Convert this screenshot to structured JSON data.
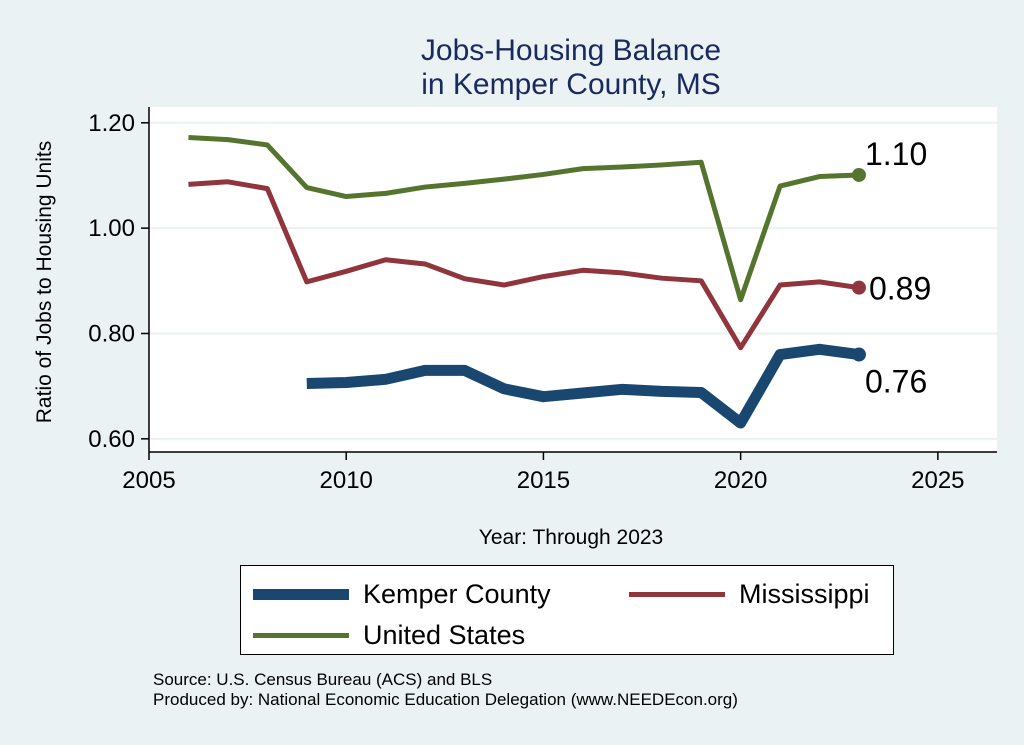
{
  "chart_data": {
    "type": "line",
    "title": [
      "Jobs-Housing Balance",
      "in Kemper County, MS"
    ],
    "xlabel": "Year: Through 2023",
    "ylabel": "Ratio of Jobs to Housing Units",
    "xlim": [
      2005,
      2026.5
    ],
    "ylim": [
      0.575,
      1.23
    ],
    "xticks": [
      2005,
      2010,
      2015,
      2020,
      2025
    ],
    "yticks": [
      0.6,
      0.8,
      1.0,
      1.2
    ],
    "ytick_labels": [
      "0.60",
      "0.80",
      "1.00",
      "1.20"
    ],
    "grid": true,
    "legend_position": "bottom",
    "series": [
      {
        "name": "Kemper County",
        "color": "#1a476f",
        "x": [
          2009,
          2010,
          2011,
          2012,
          2013,
          2014,
          2015,
          2016,
          2017,
          2018,
          2019,
          2020,
          2021,
          2022,
          2023
        ],
        "values": [
          0.705,
          0.707,
          0.713,
          0.73,
          0.73,
          0.695,
          0.68,
          0.687,
          0.694,
          0.69,
          0.688,
          0.63,
          0.76,
          0.77,
          0.76
        ],
        "end_label": "0.76"
      },
      {
        "name": "Mississippi",
        "color": "#90353b",
        "x": [
          2006,
          2007,
          2008,
          2009,
          2010,
          2011,
          2012,
          2013,
          2014,
          2015,
          2016,
          2017,
          2018,
          2019,
          2020,
          2021,
          2022,
          2023
        ],
        "values": [
          1.083,
          1.088,
          1.075,
          0.898,
          0.918,
          0.94,
          0.932,
          0.904,
          0.892,
          0.908,
          0.92,
          0.915,
          0.905,
          0.9,
          0.773,
          0.892,
          0.898,
          0.887
        ],
        "end_label": "0.89"
      },
      {
        "name": "United States",
        "color": "#55752f",
        "x": [
          2006,
          2007,
          2008,
          2009,
          2010,
          2011,
          2012,
          2013,
          2014,
          2015,
          2016,
          2017,
          2018,
          2019,
          2020,
          2021,
          2022,
          2023
        ],
        "values": [
          1.172,
          1.168,
          1.158,
          1.077,
          1.06,
          1.066,
          1.078,
          1.085,
          1.093,
          1.102,
          1.113,
          1.116,
          1.12,
          1.125,
          0.864,
          1.08,
          1.098,
          1.101
        ],
        "end_label": "1.10"
      }
    ]
  },
  "source": {
    "line1": "Source: U.S. Census Bureau (ACS) and BLS",
    "line2": "Produced by: National Economic Education Delegation (www.NEEDEcon.org)"
  }
}
